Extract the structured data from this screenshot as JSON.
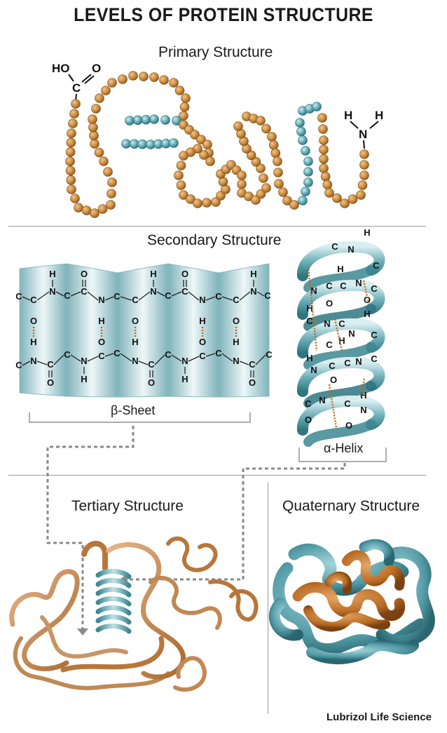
{
  "title": "LEVELS OF PROTEIN STRUCTURE",
  "primary": {
    "title": "Primary Structure",
    "carboxyl": {
      "ho": "HO",
      "o": "O",
      "c": "C"
    },
    "amine": {
      "h1": "H",
      "h2": "H",
      "n": "N"
    }
  },
  "secondary": {
    "title": "Secondary Structure",
    "beta_label": "β-Sheet",
    "alpha_label": "α-Helix",
    "atoms": {
      "c": "C",
      "n": "N",
      "o": "O",
      "h": "H"
    }
  },
  "tertiary": {
    "title": "Tertiary Structure"
  },
  "quaternary": {
    "title": "Quaternary Structure"
  },
  "brand": "Lubrizol Life Science",
  "colors": {
    "bead_orange": "#c98a3c",
    "bead_teal": "#5ea6b0",
    "ribbon_orange": "#b8773a",
    "ribbon_teal": "#6fb0ba",
    "sheet_teal": "#a9cfd4"
  }
}
